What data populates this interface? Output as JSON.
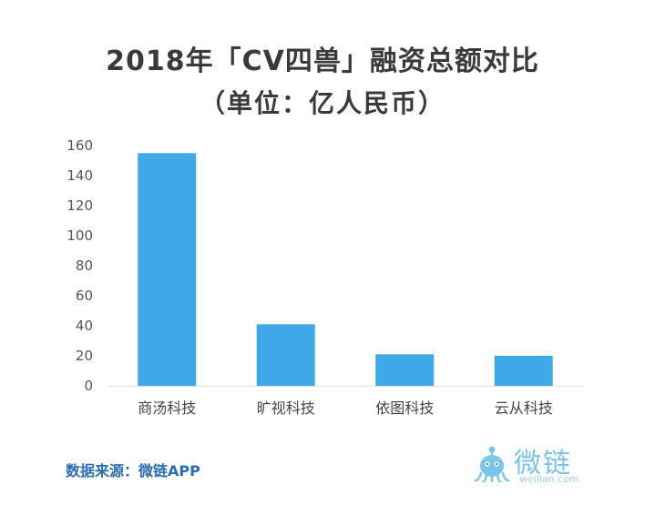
{
  "chart_data": {
    "type": "bar",
    "title": "2018年「CV四兽」融资总额对比",
    "subtitle": "（单位：亿人民币）",
    "categories": [
      "商汤科技",
      "旷视科技",
      "依图科技",
      "云从科技"
    ],
    "values": [
      155,
      41,
      21,
      20
    ],
    "ylim": [
      0,
      160
    ],
    "yticks": [
      0,
      20,
      40,
      60,
      80,
      100,
      120,
      140,
      160
    ],
    "bar_color": "#3fa9e8",
    "grid": false,
    "legend": "none"
  },
  "source": "数据来源：微链APP",
  "logo": {
    "text": "微链",
    "sub": "weilian.com",
    "icon": "octopus-mascot-icon"
  }
}
